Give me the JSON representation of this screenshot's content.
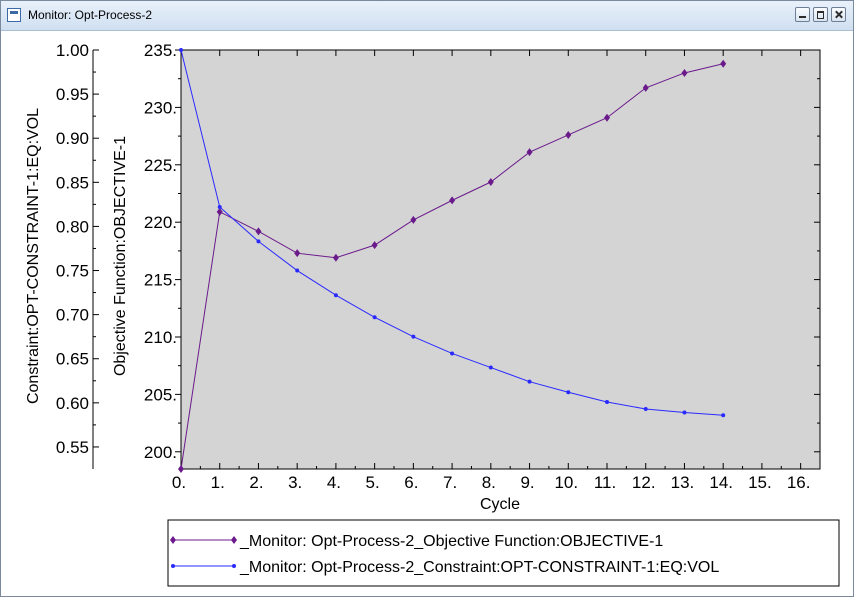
{
  "window": {
    "title": "Monitor: Opt-Process-2"
  },
  "chart_data": {
    "type": "line",
    "xlabel": "Cycle",
    "x_ticks": [
      "0.",
      "1.",
      "2.",
      "3.",
      "4.",
      "5.",
      "6.",
      "7.",
      "8.",
      "9.",
      "10.",
      "11.",
      "12.",
      "13.",
      "14.",
      "15.",
      "16."
    ],
    "xlim": [
      0,
      16.5
    ],
    "ylabel_left": "Constraint:OPT-CONSTRAINT-1:EQ:VOL",
    "ylim_left": [
      0.525,
      1.0
    ],
    "y_ticks_left": [
      "0.55",
      "0.60",
      "0.65",
      "0.70",
      "0.75",
      "0.80",
      "0.85",
      "0.90",
      "0.95",
      "1.00"
    ],
    "ylabel_right": "Objective Function:OBJECTIVE-1",
    "ylim_right": [
      198.5,
      235.0
    ],
    "y_ticks_right": [
      "200.",
      "205.",
      "210.",
      "215.",
      "220.",
      "225.",
      "230.",
      "235."
    ],
    "plot_background": "#d4d4d4",
    "grid": false,
    "legend_position": "bottom",
    "series": [
      {
        "name": "_Monitor: Opt-Process-2_Objective Function:OBJECTIVE-1",
        "axis": "right",
        "color": "#6b1a8c",
        "marker": "diamond",
        "x": [
          0,
          1,
          2,
          3,
          4,
          5,
          6,
          7,
          8,
          9,
          10,
          11,
          12,
          13,
          14
        ],
        "values": [
          198.5,
          220.9,
          219.2,
          217.3,
          216.9,
          218.0,
          220.2,
          221.9,
          223.5,
          226.1,
          227.6,
          229.1,
          231.7,
          233.0,
          233.8
        ]
      },
      {
        "name": "_Monitor: Opt-Process-2_Constraint:OPT-CONSTRAINT-1:EQ:VOL",
        "axis": "left",
        "color": "#2a2aff",
        "marker": "dot",
        "x": [
          0,
          1,
          2,
          3,
          4,
          5,
          6,
          7,
          8,
          9,
          10,
          11,
          12,
          13,
          14
        ],
        "values": [
          1.0,
          0.822,
          0.783,
          0.75,
          0.722,
          0.697,
          0.675,
          0.656,
          0.64,
          0.624,
          0.612,
          0.601,
          0.593,
          0.589,
          0.586
        ]
      }
    ]
  }
}
